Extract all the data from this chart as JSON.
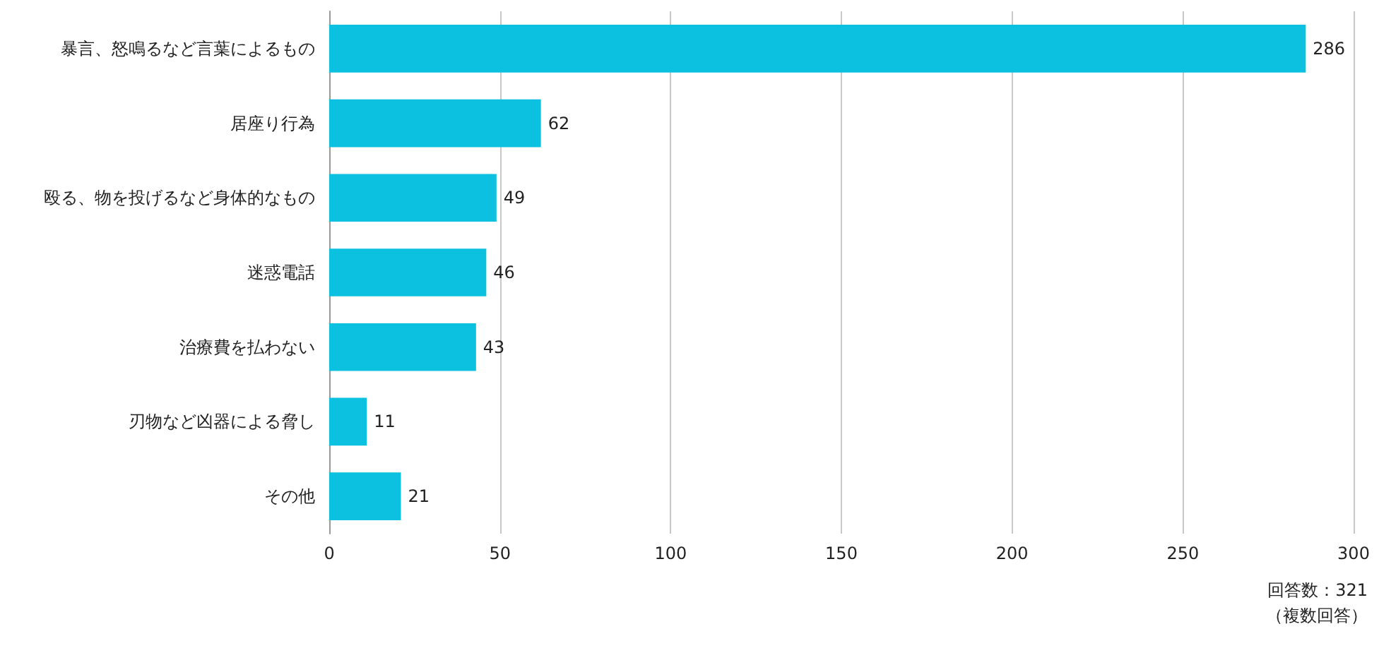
{
  "chart_data": {
    "type": "bar",
    "orientation": "horizontal",
    "categories": [
      "暴言、怒鳴るなど言葉によるもの",
      "居座り行為",
      "殴る、物を投げるなど身体的なもの",
      "迷惑電話",
      "治療費を払わない",
      "刃物など凶器による脅し",
      "その他"
    ],
    "values": [
      286,
      62,
      49,
      46,
      43,
      11,
      21
    ],
    "color": "#0cc0df",
    "xlim": [
      0,
      300
    ],
    "xticks": [
      0,
      50,
      100,
      150,
      200,
      250,
      300
    ],
    "grid": "x",
    "data_labels": true,
    "annotations": [
      "回答数：321",
      "（複数回答）"
    ]
  }
}
